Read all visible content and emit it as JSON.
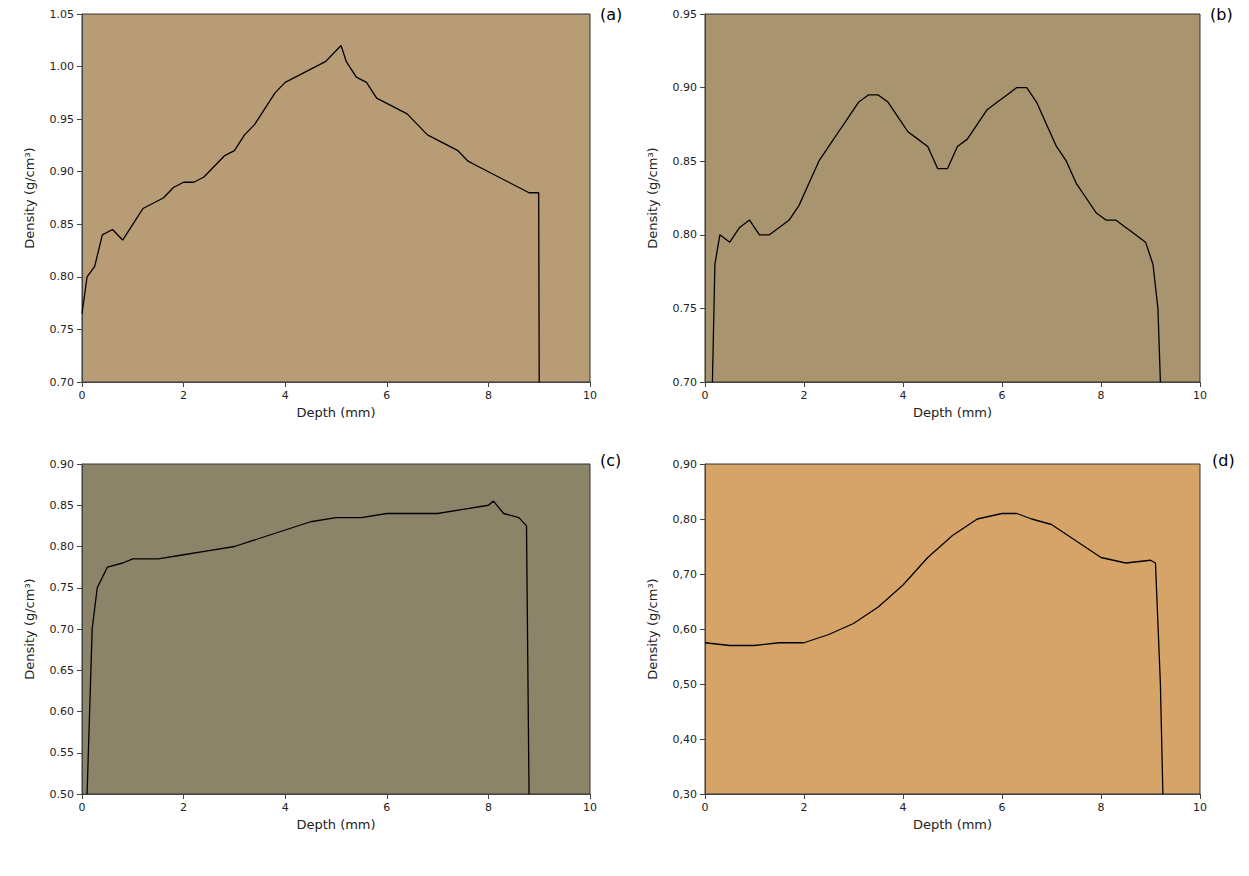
{
  "chart_data": [
    {
      "type": "line",
      "title": "(a)",
      "xlabel": "Depth (mm)",
      "ylabel": "Density (g/cm³)",
      "color": "#000000",
      "grid": false,
      "x": [
        0,
        0.1,
        0.25,
        0.4,
        0.6,
        0.8,
        1.0,
        1.2,
        1.4,
        1.6,
        1.8,
        2.0,
        2.2,
        2.4,
        2.6,
        2.8,
        3.0,
        3.2,
        3.4,
        3.6,
        3.8,
        4.0,
        4.2,
        4.4,
        4.6,
        4.8,
        5.0,
        5.1,
        5.2,
        5.4,
        5.6,
        5.8,
        6.0,
        6.2,
        6.4,
        6.6,
        6.8,
        7.0,
        7.2,
        7.4,
        7.6,
        7.8,
        8.0,
        8.2,
        8.4,
        8.6,
        8.8,
        8.99,
        9.0
      ],
      "values": [
        0.765,
        0.8,
        0.81,
        0.84,
        0.845,
        0.835,
        0.85,
        0.865,
        0.87,
        0.875,
        0.885,
        0.89,
        0.89,
        0.895,
        0.905,
        0.915,
        0.92,
        0.935,
        0.945,
        0.96,
        0.975,
        0.985,
        0.99,
        0.995,
        1.0,
        1.005,
        1.015,
        1.02,
        1.005,
        0.99,
        0.985,
        0.97,
        0.965,
        0.96,
        0.955,
        0.945,
        0.935,
        0.93,
        0.925,
        0.92,
        0.91,
        0.905,
        0.9,
        0.895,
        0.89,
        0.885,
        0.88,
        0.88,
        0.7
      ],
      "xlim": [
        0,
        10
      ],
      "xticks": [
        0,
        2,
        4,
        6,
        8,
        10
      ],
      "ylim": [
        0.7,
        1.05
      ],
      "yticks": [
        {
          "value": 0.7,
          "label": "0.70"
        },
        {
          "value": 0.75,
          "label": "0.75"
        },
        {
          "value": 0.8,
          "label": "0.80"
        },
        {
          "value": 0.85,
          "label": "0.85"
        },
        {
          "value": 0.9,
          "label": "0.90"
        },
        {
          "value": 0.95,
          "label": "0.95"
        },
        {
          "value": 1.0,
          "label": "1.00"
        },
        {
          "value": 1.05,
          "label": "1.05"
        }
      ]
    },
    {
      "type": "line",
      "title": "(b)",
      "xlabel": "Depth (mm)",
      "ylabel": "Density (g/cm³)",
      "color": "#000000",
      "grid": false,
      "x": [
        0.15,
        0.2,
        0.3,
        0.5,
        0.7,
        0.9,
        1.1,
        1.3,
        1.5,
        1.7,
        1.9,
        2.1,
        2.3,
        2.5,
        2.7,
        2.9,
        3.1,
        3.3,
        3.5,
        3.7,
        3.9,
        4.1,
        4.3,
        4.5,
        4.7,
        4.9,
        5.1,
        5.3,
        5.5,
        5.7,
        5.9,
        6.1,
        6.3,
        6.5,
        6.7,
        6.9,
        7.1,
        7.3,
        7.5,
        7.7,
        7.9,
        8.1,
        8.3,
        8.5,
        8.7,
        8.9,
        9.05,
        9.15,
        9.2
      ],
      "values": [
        0.7,
        0.78,
        0.8,
        0.795,
        0.805,
        0.81,
        0.8,
        0.8,
        0.805,
        0.81,
        0.82,
        0.835,
        0.85,
        0.86,
        0.87,
        0.88,
        0.89,
        0.895,
        0.895,
        0.89,
        0.88,
        0.87,
        0.865,
        0.86,
        0.845,
        0.845,
        0.86,
        0.865,
        0.875,
        0.885,
        0.89,
        0.895,
        0.9,
        0.9,
        0.89,
        0.875,
        0.86,
        0.85,
        0.835,
        0.825,
        0.815,
        0.81,
        0.81,
        0.805,
        0.8,
        0.795,
        0.78,
        0.75,
        0.7
      ],
      "xlim": [
        0,
        10
      ],
      "xticks": [
        0,
        2,
        4,
        6,
        8,
        10
      ],
      "ylim": [
        0.7,
        0.95
      ],
      "yticks": [
        {
          "value": 0.7,
          "label": "0.70"
        },
        {
          "value": 0.75,
          "label": "0.75"
        },
        {
          "value": 0.8,
          "label": "0.80"
        },
        {
          "value": 0.85,
          "label": "0.85"
        },
        {
          "value": 0.9,
          "label": "0.90"
        },
        {
          "value": 0.95,
          "label": "0.95"
        }
      ]
    },
    {
      "type": "line",
      "title": "(c)",
      "xlabel": "Depth (mm)",
      "ylabel": "Density (g/cm³)",
      "color": "#000000",
      "grid": false,
      "x": [
        0.1,
        0.2,
        0.3,
        0.5,
        0.8,
        1.0,
        1.5,
        2.0,
        2.5,
        3.0,
        3.5,
        4.0,
        4.5,
        5.0,
        5.5,
        6.0,
        6.5,
        7.0,
        7.5,
        8.0,
        8.1,
        8.3,
        8.6,
        8.75,
        8.8
      ],
      "values": [
        0.5,
        0.7,
        0.75,
        0.775,
        0.78,
        0.785,
        0.785,
        0.79,
        0.795,
        0.8,
        0.81,
        0.82,
        0.83,
        0.835,
        0.835,
        0.84,
        0.84,
        0.84,
        0.845,
        0.85,
        0.855,
        0.84,
        0.835,
        0.825,
        0.5
      ],
      "xlim": [
        0,
        10
      ],
      "xticks": [
        0,
        2,
        4,
        6,
        8,
        10
      ],
      "ylim": [
        0.5,
        0.9
      ],
      "yticks": [
        {
          "value": 0.5,
          "label": "0.50"
        },
        {
          "value": 0.55,
          "label": "0.55"
        },
        {
          "value": 0.6,
          "label": "0.60"
        },
        {
          "value": 0.65,
          "label": "0.65"
        },
        {
          "value": 0.7,
          "label": "0.70"
        },
        {
          "value": 0.75,
          "label": "0.75"
        },
        {
          "value": 0.8,
          "label": "0.80"
        },
        {
          "value": 0.85,
          "label": "0.85"
        },
        {
          "value": 0.9,
          "label": "0.90"
        }
      ]
    },
    {
      "type": "line",
      "title": "(d)",
      "xlabel": "Depth (mm)",
      "ylabel": "Density (g/cm³)",
      "color": "#000000",
      "grid": false,
      "x": [
        0,
        0.5,
        1.0,
        1.5,
        2.0,
        2.5,
        3.0,
        3.5,
        4.0,
        4.5,
        5.0,
        5.5,
        6.0,
        6.3,
        6.6,
        7.0,
        7.5,
        8.0,
        8.5,
        9.0,
        9.1,
        9.2,
        9.25
      ],
      "values": [
        0.575,
        0.57,
        0.57,
        0.575,
        0.575,
        0.59,
        0.61,
        0.64,
        0.68,
        0.73,
        0.77,
        0.8,
        0.81,
        0.81,
        0.8,
        0.79,
        0.76,
        0.73,
        0.72,
        0.725,
        0.72,
        0.5,
        0.3
      ],
      "xlim": [
        0,
        10
      ],
      "xticks": [
        0,
        2,
        4,
        6,
        8,
        10
      ],
      "ylim": [
        0.3,
        0.9
      ],
      "yticks": [
        {
          "value": 0.3,
          "label": "0,30"
        },
        {
          "value": 0.4,
          "label": "0,40"
        },
        {
          "value": 0.5,
          "label": "0,50"
        },
        {
          "value": 0.6,
          "label": "0,60"
        },
        {
          "value": 0.7,
          "label": "0,70"
        },
        {
          "value": 0.8,
          "label": "0,80"
        },
        {
          "value": 0.9,
          "label": "0,90"
        }
      ]
    }
  ]
}
